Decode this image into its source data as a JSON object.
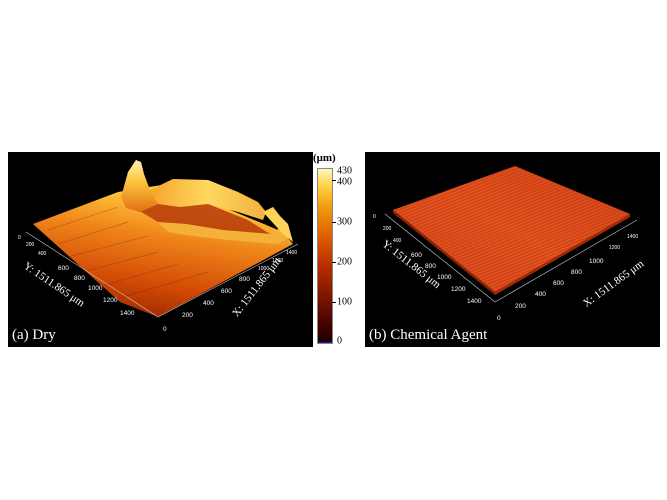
{
  "colors": {
    "panel_background": "#000000",
    "surface_high": "#ffd23a",
    "surface_mid": "#e26410",
    "surface_low": "#9a2200",
    "surface_flat": "#e0521e"
  },
  "panel_a": {
    "label": "(a) Dry",
    "y_axis_title": "Y: 1511.865 μm",
    "x_axis_title": "X: 1511.865 μm",
    "y_ticks": [
      "0",
      "200",
      "400",
      "600",
      "800",
      "1000",
      "1200",
      "1400"
    ],
    "x_ticks": [
      "0",
      "200",
      "400",
      "600",
      "800",
      "1000",
      "1200",
      "1400"
    ]
  },
  "panel_b": {
    "label": "(b) Chemical Agent",
    "y_axis_title": "Y: 1511.865 μm",
    "x_axis_title": "X: 1511.865 μm",
    "y_ticks": [
      "0",
      "200",
      "400",
      "600",
      "800",
      "1000",
      "1200",
      "1400"
    ],
    "x_ticks": [
      "0",
      "200",
      "400",
      "600",
      "800",
      "1000",
      "1200",
      "1400"
    ]
  },
  "colorbar": {
    "unit": "(μm)",
    "max_label": "430",
    "ticks": [
      "400",
      "300",
      "200",
      "100",
      "0"
    ],
    "range": [
      0,
      430
    ]
  }
}
